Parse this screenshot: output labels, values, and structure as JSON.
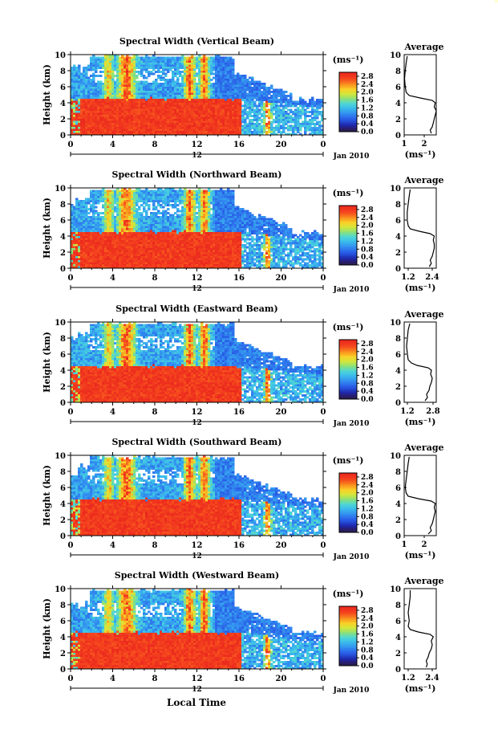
{
  "figure": {
    "x_title": "Local Time",
    "date_label": "Jan 2010",
    "colorbar_unit": "(ms⁻¹)",
    "profile_title": "Average",
    "profile_xlabel": "(ms⁻¹)",
    "day_marker": "12"
  },
  "chart_data": [
    {
      "type": "heatmap",
      "title": "Spectral Width (Vertical Beam)",
      "ylabel": "Height (km)",
      "ylim": [
        0,
        10
      ],
      "yticks": [
        "0",
        "2",
        "4",
        "6",
        "8",
        "10"
      ],
      "xticks": [
        "0",
        "4",
        "8",
        "12",
        "16",
        "20",
        "0"
      ],
      "xlim": [
        0,
        24
      ],
      "colorbar": {
        "ticks": [
          "0.0",
          "0.4",
          "0.8",
          "1.2",
          "1.6",
          "2.0",
          "2.4",
          "2.8"
        ],
        "range": [
          0,
          3.0
        ]
      },
      "profile": {
        "xticks": [
          "1",
          "2"
        ],
        "xlim": [
          1.0,
          2.6
        ],
        "yticks": [
          "0",
          "2",
          "4",
          "6",
          "8",
          "10"
        ],
        "height_km": [
          0.2,
          0.6,
          1.0,
          1.5,
          2.0,
          2.5,
          3.0,
          3.5,
          4.0,
          4.3,
          4.6,
          4.9,
          5.3,
          6.0,
          7.0,
          8.0,
          9.0,
          9.8
        ],
        "width": [
          2.35,
          2.3,
          2.4,
          2.45,
          2.5,
          2.55,
          2.6,
          2.5,
          2.55,
          2.4,
          1.8,
          1.25,
          1.1,
          1.05,
          1.02,
          1.05,
          1.1,
          1.15
        ]
      }
    },
    {
      "type": "heatmap",
      "title": "Spectral Width (Northward Beam)",
      "ylabel": "Height (km)",
      "ylim": [
        0,
        10
      ],
      "yticks": [
        "0",
        "2",
        "4",
        "6",
        "8",
        "10"
      ],
      "xticks": [
        "0",
        "4",
        "8",
        "12",
        "16",
        "20",
        "0"
      ],
      "xlim": [
        0,
        24
      ],
      "colorbar": {
        "ticks": [
          "0.0",
          "0.4",
          "0.8",
          "1.2",
          "1.6",
          "2.0",
          "2.4",
          "2.8"
        ],
        "range": [
          0,
          3.0
        ]
      },
      "profile": {
        "xticks": [
          "1.2",
          "2.4"
        ],
        "xlim": [
          1.0,
          2.6
        ],
        "yticks": [
          "0",
          "2",
          "4",
          "6",
          "8",
          "10"
        ],
        "height_km": [
          0.2,
          0.6,
          1.0,
          1.5,
          2.0,
          2.5,
          3.0,
          3.5,
          4.0,
          4.3,
          4.6,
          4.9,
          5.3,
          6.0,
          7.0,
          8.0,
          9.0,
          9.8
        ],
        "width": [
          2.25,
          2.35,
          2.3,
          2.4,
          2.45,
          2.5,
          2.5,
          2.45,
          2.5,
          2.3,
          1.75,
          1.3,
          1.2,
          1.15,
          1.15,
          1.2,
          1.25,
          1.3
        ]
      }
    },
    {
      "type": "heatmap",
      "title": "Spectral Width (Eastward Beam)",
      "ylabel": "Height (km)",
      "ylim": [
        0,
        10
      ],
      "yticks": [
        "0",
        "2",
        "4",
        "6",
        "8",
        "10"
      ],
      "xticks": [
        "0",
        "4",
        "8",
        "12",
        "16",
        "20",
        "0"
      ],
      "xlim": [
        0,
        24
      ],
      "colorbar": {
        "ticks": [
          "0.0",
          "0.4",
          "0.8",
          "1.2",
          "1.6",
          "2.0",
          "2.4",
          "2.8"
        ],
        "range": [
          0,
          3.0
        ]
      },
      "profile": {
        "xticks": [
          "1.2",
          "2.8"
        ],
        "xlim": [
          1.0,
          3.0
        ],
        "yticks": [
          "0",
          "2",
          "4",
          "6",
          "8",
          "10"
        ],
        "height_km": [
          0.2,
          0.6,
          1.0,
          1.5,
          2.0,
          2.5,
          3.0,
          3.5,
          4.0,
          4.3,
          4.6,
          4.9,
          5.3,
          6.0,
          7.0,
          8.0,
          9.0,
          9.8
        ],
        "width": [
          2.3,
          2.45,
          2.4,
          2.55,
          2.6,
          2.7,
          2.75,
          2.65,
          2.7,
          2.5,
          1.8,
          1.45,
          1.25,
          1.2,
          1.15,
          1.2,
          1.25,
          1.35
        ]
      }
    },
    {
      "type": "heatmap",
      "title": "Spectral Width (Southward Beam)",
      "ylabel": "Height (km)",
      "ylim": [
        0,
        10
      ],
      "yticks": [
        "0",
        "2",
        "4",
        "6",
        "8",
        "10"
      ],
      "xticks": [
        "0",
        "4",
        "8",
        "12",
        "16",
        "20",
        "0"
      ],
      "xlim": [
        0,
        24
      ],
      "colorbar": {
        "ticks": [
          "0.0",
          "0.4",
          "0.8",
          "1.2",
          "1.6",
          "2.0",
          "2.4",
          "2.8"
        ],
        "range": [
          0,
          3.0
        ]
      },
      "profile": {
        "xticks": [
          "1",
          "2"
        ],
        "xlim": [
          1.0,
          2.6
        ],
        "yticks": [
          "0",
          "2",
          "4",
          "6",
          "8",
          "10"
        ],
        "height_km": [
          0.2,
          0.6,
          1.0,
          1.5,
          2.0,
          2.5,
          3.0,
          3.5,
          4.0,
          4.3,
          4.6,
          4.9,
          5.3,
          6.0,
          7.0,
          8.0,
          9.0,
          9.8
        ],
        "width": [
          2.2,
          2.35,
          2.3,
          2.4,
          2.45,
          2.5,
          2.55,
          2.5,
          2.55,
          2.35,
          1.7,
          1.2,
          1.1,
          1.05,
          1.1,
          1.15,
          1.2,
          1.25
        ]
      }
    },
    {
      "type": "heatmap",
      "title": "Spectral Width (Westward Beam)",
      "ylabel": "Height (km)",
      "ylim": [
        0,
        10
      ],
      "yticks": [
        "0",
        "2",
        "4",
        "6",
        "8",
        "10"
      ],
      "xticks": [
        "0",
        "4",
        "8",
        "12",
        "16",
        "20",
        "0"
      ],
      "xlim": [
        0,
        24
      ],
      "colorbar": {
        "ticks": [
          "0.0",
          "0.4",
          "0.8",
          "1.2",
          "1.6",
          "2.0",
          "2.4",
          "2.8"
        ],
        "range": [
          0,
          3.0
        ]
      },
      "profile": {
        "xticks": [
          "1.2",
          "2.4"
        ],
        "xlim": [
          1.0,
          2.6
        ],
        "yticks": [
          "0",
          "2",
          "4",
          "6",
          "8",
          "10"
        ],
        "height_km": [
          0.2,
          0.6,
          1.0,
          1.5,
          2.0,
          2.5,
          3.0,
          3.5,
          4.0,
          4.3,
          4.6,
          4.9,
          5.3,
          6.0,
          7.0,
          8.0,
          9.0,
          9.8
        ],
        "width": [
          2.1,
          2.15,
          2.1,
          2.2,
          2.25,
          2.35,
          2.4,
          2.35,
          2.45,
          2.3,
          1.7,
          1.3,
          1.2,
          1.25,
          1.2,
          1.25,
          1.3,
          1.3
        ]
      }
    }
  ]
}
